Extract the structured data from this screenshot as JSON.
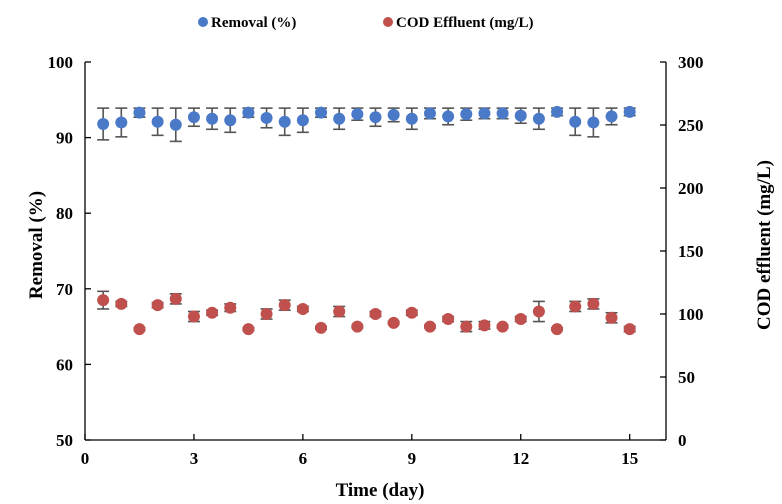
{
  "chart_data": {
    "type": "scatter",
    "x_axis": {
      "label": "Time (day)",
      "range": [
        0,
        16
      ],
      "ticks": [
        0,
        3,
        6,
        9,
        12,
        15
      ],
      "tick_labels": [
        "0",
        "3",
        "6",
        "9",
        "12",
        "15"
      ]
    },
    "y_axis_left": {
      "label": "Removal (%)",
      "range": [
        50,
        100
      ],
      "ticks": [
        50,
        60,
        70,
        80,
        90,
        100
      ],
      "tick_labels": [
        "50",
        "60",
        "70",
        "80",
        "90",
        "100"
      ]
    },
    "y_axis_right": {
      "label": "COD effluent (mg/L)",
      "range": [
        0,
        300
      ],
      "ticks": [
        0,
        50,
        100,
        150,
        200,
        250,
        300
      ],
      "tick_labels": [
        "0",
        "50",
        "100",
        "150",
        "200",
        "250",
        "300"
      ]
    },
    "grid": false,
    "legend": {
      "position": "top-center"
    },
    "x": [
      0.5,
      1,
      1.5,
      2,
      2.5,
      3,
      3.5,
      4,
      4.5,
      5,
      5.5,
      6,
      6.5,
      7,
      7.5,
      8,
      8.5,
      9,
      9.5,
      10,
      10.5,
      11,
      11.5,
      12,
      12.5,
      13,
      13.5,
      14,
      14.5,
      15
    ],
    "series": [
      {
        "name": "Removal (%)",
        "axis": "left",
        "color": "#4a7ac7",
        "values": [
          91.8,
          92.0,
          93.3,
          92.1,
          91.7,
          92.7,
          92.5,
          92.3,
          93.3,
          92.6,
          92.1,
          92.3,
          93.3,
          92.5,
          93.1,
          92.7,
          93.0,
          92.5,
          93.2,
          92.8,
          93.1,
          93.2,
          93.2,
          92.9,
          92.5,
          93.4,
          92.1,
          92.0,
          92.8,
          93.4
        ],
        "error": [
          2.1,
          1.9,
          0.6,
          1.8,
          2.2,
          1.2,
          1.4,
          1.6,
          0.6,
          1.3,
          1.8,
          1.6,
          0.6,
          1.4,
          0.8,
          1.2,
          0.9,
          1.4,
          0.7,
          1.1,
          0.8,
          0.7,
          0.7,
          1.0,
          1.4,
          0.5,
          1.8,
          1.9,
          1.1,
          0.5
        ]
      },
      {
        "name": "COD Effluent (mg/L)",
        "axis": "right",
        "color": "#c0504d",
        "values": [
          111,
          108,
          88,
          107,
          112,
          98,
          101,
          105,
          88,
          100,
          107,
          104,
          89,
          102,
          90,
          100,
          93,
          101,
          90,
          96,
          90,
          91,
          90,
          96,
          102,
          88,
          106,
          108,
          97,
          88
        ],
        "error": [
          7,
          2,
          1,
          2,
          4,
          4,
          2,
          3,
          1,
          4,
          4,
          2,
          1,
          4,
          1,
          2,
          1,
          2,
          1,
          2,
          4,
          3,
          1,
          2,
          8,
          1,
          4,
          4,
          4,
          2
        ]
      }
    ]
  }
}
